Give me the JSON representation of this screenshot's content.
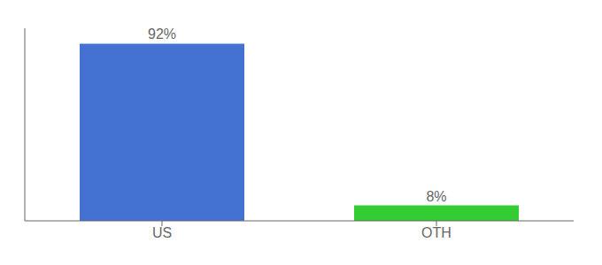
{
  "chart_data": {
    "type": "bar",
    "categories": [
      "US",
      "OTH"
    ],
    "values": [
      92,
      8
    ],
    "value_labels": [
      "92%",
      "8%"
    ],
    "colors": [
      "#4472d3",
      "#33cc33"
    ],
    "ylim": [
      0,
      100
    ],
    "data_labels": true,
    "tick_labels": "x"
  }
}
